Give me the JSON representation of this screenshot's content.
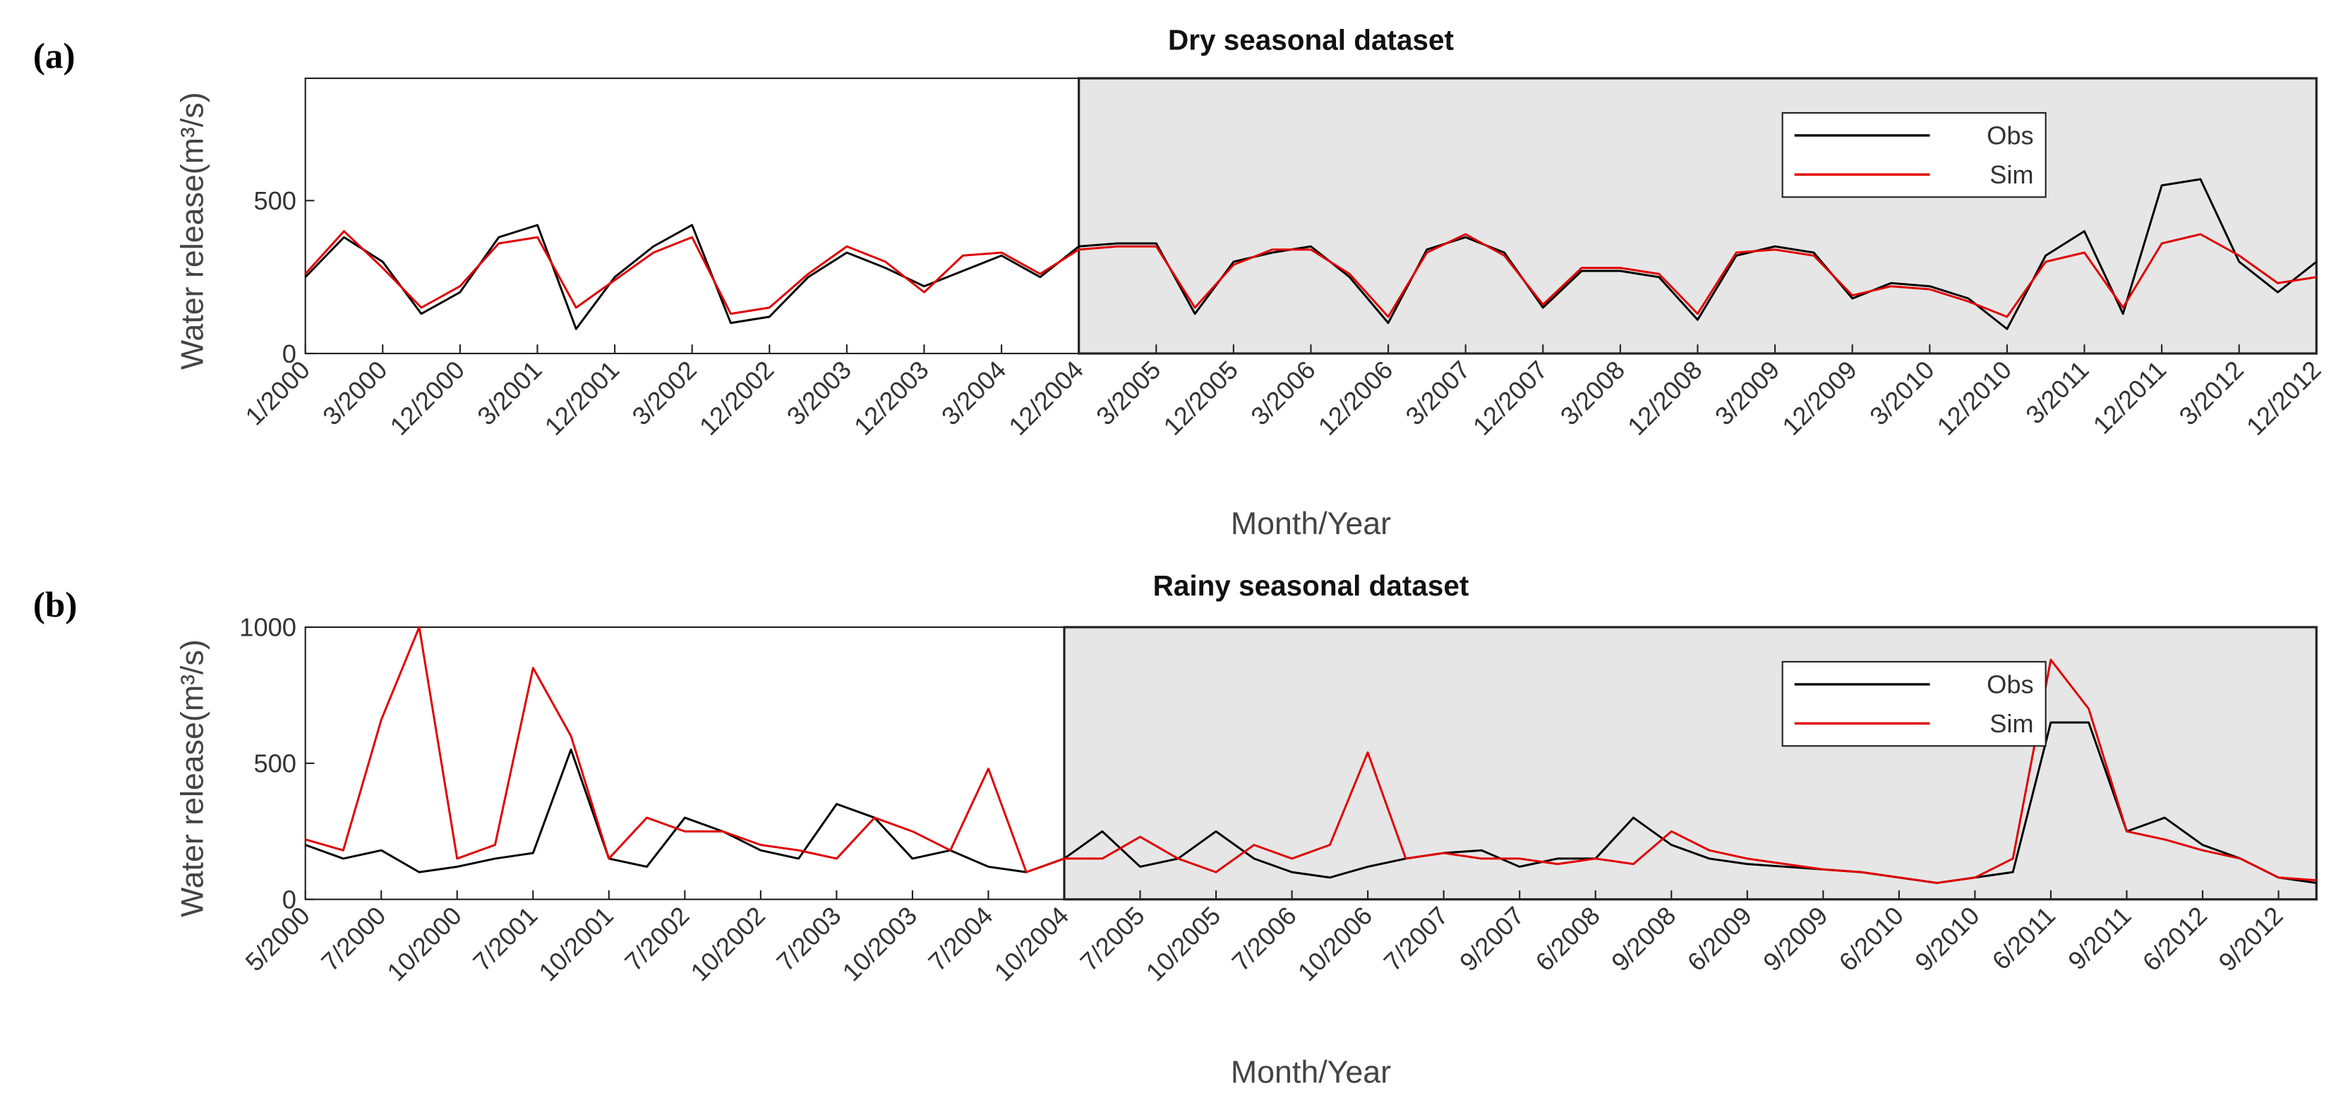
{
  "chart_data": [
    {
      "type": "line",
      "panel_label": "(a)",
      "title": "Dry seasonal dataset",
      "x_label": "Month/Year",
      "y_label": "Water release(m³/s)",
      "categories": [
        "1/2000",
        null,
        "3/2000",
        null,
        "12/2000",
        null,
        "3/2001",
        null,
        "12/2001",
        null,
        "3/2002",
        null,
        "12/2002",
        null,
        "3/2003",
        null,
        "12/2003",
        null,
        "3/2004",
        null,
        "12/2004",
        null,
        "3/2005",
        null,
        "12/2005",
        null,
        "3/2006",
        null,
        "12/2006",
        null,
        "3/2007",
        null,
        "12/2007",
        null,
        "3/2008",
        null,
        "12/2008",
        null,
        "3/2009",
        null,
        "12/2009",
        null,
        "3/2010",
        null,
        "12/2010",
        null,
        "3/2011",
        null,
        "12/2011",
        null,
        "3/2012",
        null,
        "12/2012"
      ],
      "series": [
        {
          "name": "Obs",
          "color": "#000000",
          "values": [
            250,
            380,
            300,
            130,
            200,
            380,
            420,
            80,
            250,
            350,
            420,
            100,
            120,
            250,
            330,
            280,
            220,
            270,
            320,
            250,
            350,
            360,
            360,
            130,
            300,
            330,
            350,
            250,
            100,
            340,
            380,
            330,
            150,
            270,
            270,
            250,
            110,
            320,
            350,
            330,
            180,
            230,
            220,
            180,
            80,
            320,
            400,
            130,
            550,
            570,
            300,
            200,
            300
          ]
        },
        {
          "name": "Sim",
          "color": "#e00000",
          "values": [
            260,
            400,
            280,
            150,
            220,
            360,
            380,
            150,
            240,
            330,
            380,
            130,
            150,
            260,
            350,
            300,
            200,
            320,
            330,
            260,
            340,
            350,
            350,
            150,
            290,
            340,
            340,
            260,
            120,
            330,
            390,
            320,
            160,
            280,
            280,
            260,
            130,
            330,
            340,
            320,
            190,
            220,
            210,
            170,
            120,
            300,
            330,
            150,
            360,
            390,
            320,
            230,
            250
          ]
        }
      ],
      "ylim": [
        0,
        900
      ],
      "yticks": [
        0,
        500
      ],
      "legend": "upper right",
      "shade_start": "12/2004",
      "shade_color": "#e6e6e6"
    },
    {
      "type": "line",
      "panel_label": "(b)",
      "title": "Rainy seasonal dataset",
      "x_label": "Month/Year",
      "y_label": "Water release(m³/s)",
      "categories": [
        "5/2000",
        null,
        "7/2000",
        null,
        "10/2000",
        null,
        "7/2001",
        null,
        "10/2001",
        null,
        "7/2002",
        null,
        "10/2002",
        null,
        "7/2003",
        null,
        "10/2003",
        null,
        "7/2004",
        null,
        "10/2004",
        null,
        "7/2005",
        null,
        "10/2005",
        null,
        "7/2006",
        null,
        "10/2006",
        null,
        "7/2007",
        null,
        "9/2007",
        null,
        "6/2008",
        null,
        "9/2008",
        null,
        "6/2009",
        null,
        "9/2009",
        null,
        "6/2010",
        null,
        "9/2010",
        null,
        "6/2011",
        null,
        "9/2011",
        null,
        "6/2012",
        null,
        "9/2012",
        null
      ],
      "series": [
        {
          "name": "Obs",
          "color": "#000000",
          "values": [
            200,
            150,
            180,
            100,
            120,
            150,
            170,
            550,
            150,
            120,
            300,
            250,
            180,
            150,
            350,
            300,
            150,
            180,
            120,
            100,
            150,
            250,
            120,
            150,
            250,
            150,
            100,
            80,
            120,
            150,
            170,
            180,
            120,
            150,
            150,
            300,
            200,
            150,
            130,
            120,
            110,
            100,
            80,
            60,
            80,
            100,
            650,
            650,
            250,
            300,
            200,
            150,
            80,
            60
          ]
        },
        {
          "name": "Sim",
          "color": "#e00000",
          "values": [
            220,
            180,
            660,
            1000,
            150,
            200,
            850,
            600,
            150,
            300,
            250,
            250,
            200,
            180,
            150,
            300,
            250,
            180,
            480,
            100,
            150,
            150,
            230,
            150,
            100,
            200,
            150,
            200,
            540,
            150,
            170,
            150,
            150,
            130,
            150,
            130,
            250,
            180,
            150,
            130,
            110,
            100,
            80,
            60,
            80,
            150,
            880,
            700,
            250,
            220,
            180,
            150,
            80,
            70
          ]
        }
      ],
      "ylim": [
        0,
        1000
      ],
      "yticks": [
        0,
        500,
        1000
      ],
      "legend": "upper right",
      "shade_start": "10/2004",
      "shade_color": "#e6e6e6"
    }
  ]
}
